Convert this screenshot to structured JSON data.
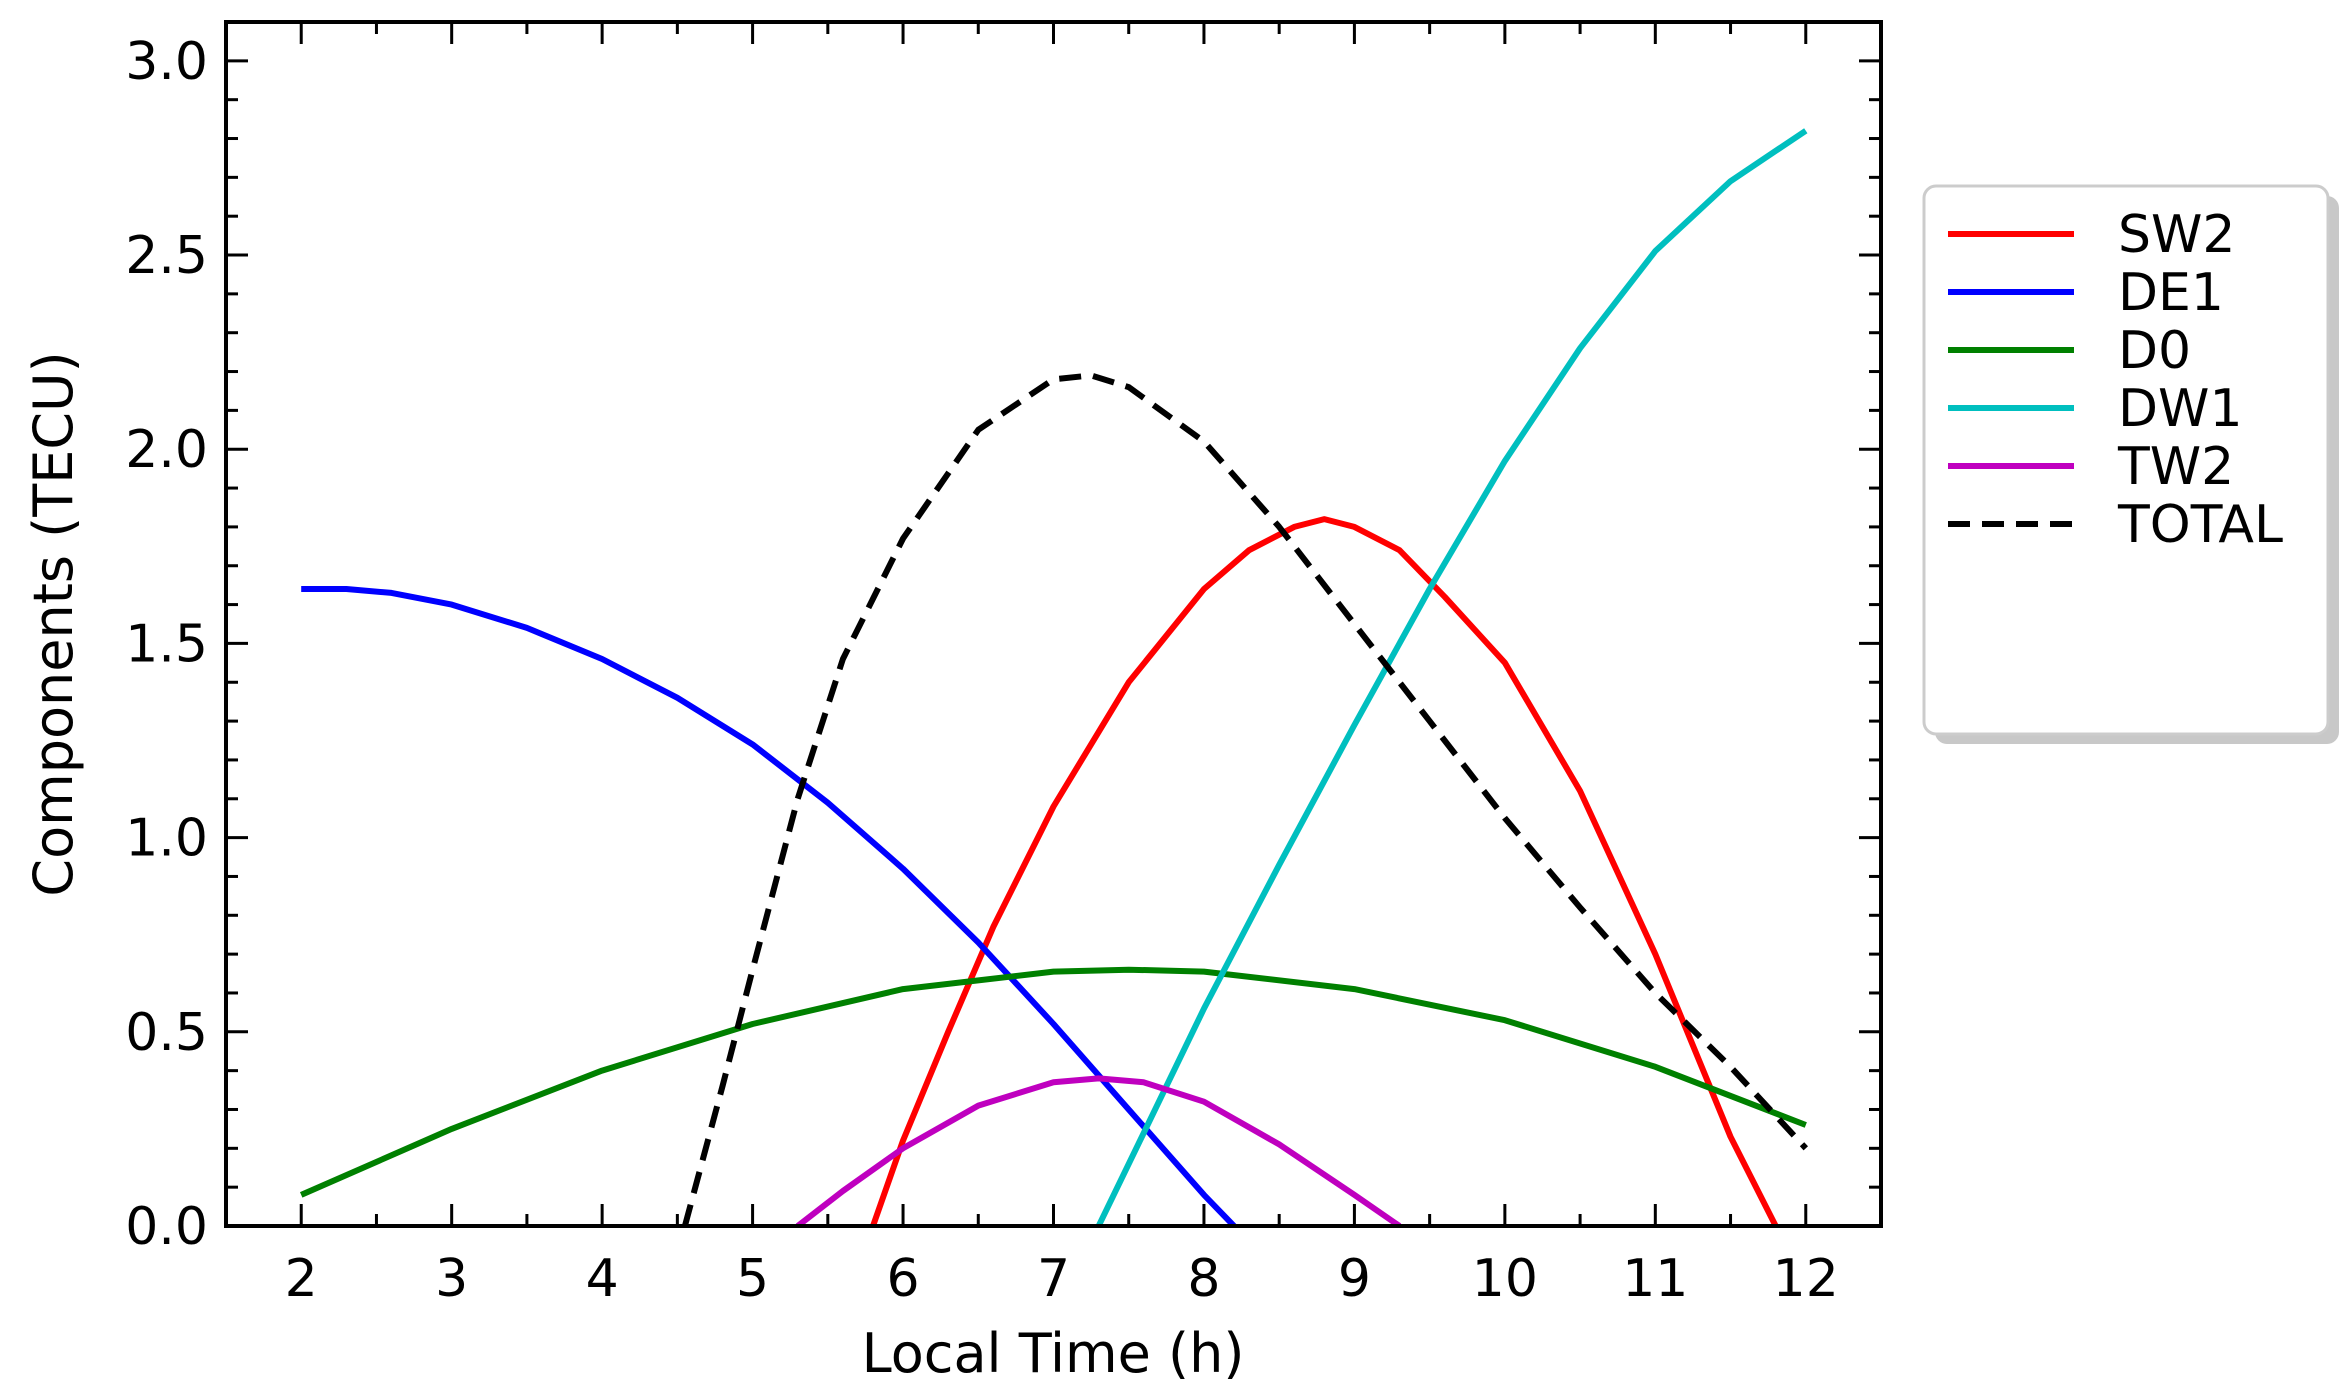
{
  "chart_data": {
    "type": "line",
    "title": "",
    "xlabel": "Local Time (h)",
    "ylabel": "Components (TECU)",
    "xlim": [
      1.5,
      12.5
    ],
    "ylim": [
      0.0,
      3.1
    ],
    "xticks": [
      2,
      3,
      4,
      5,
      6,
      7,
      8,
      9,
      10,
      11,
      12
    ],
    "yticks": [
      0.0,
      0.5,
      1.0,
      1.5,
      2.0,
      2.5,
      3.0
    ],
    "xtick_labels": [
      "2",
      "3",
      "4",
      "5",
      "6",
      "7",
      "8",
      "9",
      "10",
      "11",
      "12"
    ],
    "ytick_labels": [
      "0.0",
      "0.5",
      "1.0",
      "1.5",
      "2.0",
      "2.5",
      "3.0"
    ],
    "grid": false,
    "legend_position": "outside-right",
    "series": [
      {
        "name": "SW2",
        "color": "#ff0000",
        "style": "solid",
        "x": [
          5.8,
          6.0,
          6.3,
          6.6,
          7.0,
          7.5,
          8.0,
          8.3,
          8.6,
          8.8,
          9.0,
          9.3,
          9.6,
          10.0,
          10.5,
          11.0,
          11.5,
          11.8
        ],
        "y": [
          0.0,
          0.22,
          0.5,
          0.77,
          1.08,
          1.4,
          1.64,
          1.74,
          1.8,
          1.82,
          1.8,
          1.74,
          1.62,
          1.45,
          1.12,
          0.7,
          0.23,
          0.0
        ]
      },
      {
        "name": "DE1",
        "color": "#0000ff",
        "style": "solid",
        "x": [
          2.0,
          2.3,
          2.6,
          3.0,
          3.5,
          4.0,
          4.5,
          5.0,
          5.5,
          6.0,
          6.5,
          7.0,
          7.5,
          8.0,
          8.2
        ],
        "y": [
          1.64,
          1.64,
          1.63,
          1.6,
          1.54,
          1.46,
          1.36,
          1.24,
          1.09,
          0.92,
          0.73,
          0.52,
          0.3,
          0.08,
          0.0
        ]
      },
      {
        "name": "D0",
        "color": "#008000",
        "style": "solid",
        "x": [
          2.0,
          3.0,
          4.0,
          5.0,
          6.0,
          7.0,
          7.5,
          8.0,
          9.0,
          10.0,
          11.0,
          12.0
        ],
        "y": [
          0.08,
          0.25,
          0.4,
          0.52,
          0.61,
          0.655,
          0.66,
          0.655,
          0.61,
          0.53,
          0.41,
          0.26
        ]
      },
      {
        "name": "DW1",
        "color": "#00bfbf",
        "style": "solid",
        "x": [
          7.3,
          7.6,
          8.0,
          8.5,
          9.0,
          9.5,
          10.0,
          10.5,
          11.0,
          11.5,
          12.0
        ],
        "y": [
          0.0,
          0.24,
          0.56,
          0.93,
          1.29,
          1.64,
          1.97,
          2.26,
          2.51,
          2.69,
          2.82
        ]
      },
      {
        "name": "TW2",
        "color": "#bf00bf",
        "style": "solid",
        "x": [
          5.3,
          5.6,
          6.0,
          6.5,
          7.0,
          7.3,
          7.6,
          8.0,
          8.5,
          9.0,
          9.3
        ],
        "y": [
          0.0,
          0.09,
          0.2,
          0.31,
          0.37,
          0.38,
          0.37,
          0.32,
          0.21,
          0.08,
          0.0
        ]
      },
      {
        "name": "TOTAL",
        "color": "#000000",
        "style": "dashed",
        "x": [
          4.55,
          4.8,
          5.0,
          5.3,
          5.6,
          6.0,
          6.5,
          7.0,
          7.25,
          7.5,
          8.0,
          8.5,
          9.0,
          9.5,
          10.0,
          10.5,
          11.0,
          11.5,
          12.0
        ],
        "y": [
          0.0,
          0.36,
          0.66,
          1.1,
          1.46,
          1.77,
          2.05,
          2.18,
          2.19,
          2.16,
          2.02,
          1.8,
          1.55,
          1.3,
          1.05,
          0.82,
          0.6,
          0.41,
          0.2
        ]
      }
    ]
  }
}
